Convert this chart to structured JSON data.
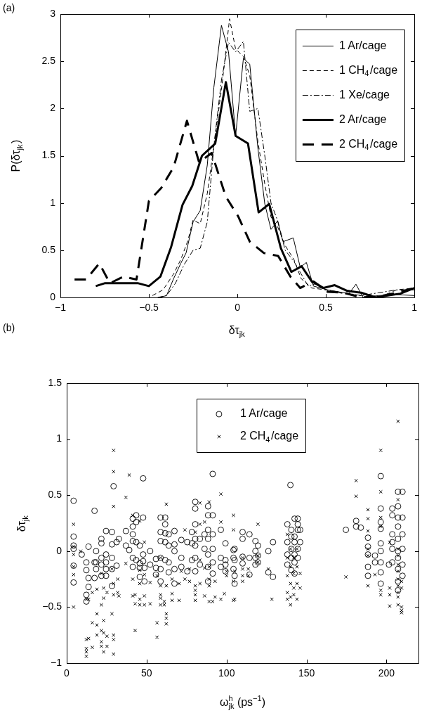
{
  "chart_data": [
    {
      "type": "line",
      "title": "(a)",
      "xlabel": "δτ$_{jk}$",
      "ylabel": "P(δτ$_{jk}$)",
      "xlim": [
        -1,
        1
      ],
      "xticks": [
        -1,
        -0.5,
        0,
        0.5,
        1
      ],
      "ylim": [
        0,
        3
      ],
      "yticks": [
        0,
        0.5,
        1,
        1.5,
        2,
        2.5,
        3
      ],
      "grid": false,
      "legend": "top right",
      "marker": "none",
      "series": [
        {
          "name": "1 Ar/cage",
          "color": "#000000",
          "line_style": "solid",
          "x": [
            -0.44,
            -0.4,
            -0.36,
            -0.32,
            -0.29,
            -0.25,
            -0.21,
            -0.17,
            -0.133,
            -0.09,
            -0.05,
            -0.01,
            0.034,
            0.07,
            0.116,
            0.155,
            0.19,
            0.227,
            0.258,
            0.316,
            0.355,
            0.39,
            0.43,
            0.51,
            0.63,
            0.67,
            0.71,
            0.8,
            0.9,
            1.0
          ],
          "values": [
            0,
            0.02,
            0.2,
            0.36,
            0.47,
            0.8,
            0.92,
            1.4,
            2.22,
            2.88,
            2.6,
            1.71,
            2.53,
            2.47,
            1.58,
            0.99,
            0.72,
            0.81,
            0.59,
            0.63,
            0.32,
            0.37,
            0.12,
            0.08,
            0.04,
            0.14,
            0,
            0.02,
            0.03,
            0.02
          ]
        },
        {
          "name": "1 CH$_{4}$/cage",
          "color": "#000000",
          "line_style": "dashed",
          "x": [
            -0.48,
            -0.42,
            -0.36,
            -0.32,
            -0.28,
            -0.25,
            -0.21,
            -0.17,
            -0.133,
            -0.09,
            -0.044,
            -0.01,
            0.034,
            0.07,
            0.116,
            0.155,
            0.19,
            0.227,
            0.27,
            0.32,
            0.36,
            0.42,
            0.5,
            0.6,
            0.7,
            0.8,
            0.9,
            1.0
          ],
          "values": [
            0.02,
            0.08,
            0.25,
            0.4,
            0.6,
            0.82,
            0.78,
            1.1,
            1.6,
            2.2,
            2.95,
            2.63,
            2.55,
            2.35,
            1.65,
            1.2,
            0.85,
            0.75,
            0.55,
            0.4,
            0.2,
            0.1,
            0.08,
            0.04,
            0.02,
            0,
            0.08,
            0.1
          ]
        },
        {
          "name": "1 Xe/cage",
          "color": "#000000",
          "line_style": "dashdot",
          "x": [
            -0.45,
            -0.4,
            -0.35,
            -0.3,
            -0.25,
            -0.21,
            -0.17,
            -0.133,
            -0.09,
            -0.05,
            -0.01,
            0.034,
            0.07,
            0.116,
            0.155,
            0.19,
            0.23,
            0.27,
            0.32,
            0.36,
            0.4,
            0.45,
            0.5,
            0.6,
            0.7,
            0.8,
            0.9,
            1.0
          ],
          "values": [
            0,
            0.02,
            0.15,
            0.35,
            0.5,
            0.52,
            0.8,
            1.6,
            2.3,
            2.7,
            2.6,
            2.71,
            1.97,
            2.0,
            1.5,
            1.0,
            0.8,
            0.5,
            0.38,
            0.25,
            0.12,
            0.15,
            0.08,
            0.05,
            0.02,
            0.05,
            0.08,
            0.08
          ]
        },
        {
          "name": "2 Ar/cage",
          "color": "#000000",
          "line_style": "solid",
          "x": [
            -0.8,
            -0.75,
            -0.56,
            -0.5,
            -0.435,
            -0.375,
            -0.31,
            -0.255,
            -0.2,
            -0.125,
            -0.065,
            -0.01,
            0.06,
            0.12,
            0.18,
            0.246,
            0.305,
            0.363,
            0.42,
            0.487,
            0.55,
            0.62,
            0.7,
            0.78,
            0.85,
            0.92,
            1.0
          ],
          "values": [
            0.12,
            0.15,
            0.15,
            0.12,
            0.22,
            0.53,
            0.98,
            1.18,
            1.5,
            1.63,
            2.28,
            1.71,
            1.63,
            0.9,
            0.99,
            0.52,
            0.27,
            0.33,
            0.17,
            0.1,
            0.13,
            0.07,
            0.05,
            0,
            0.02,
            0.04,
            0.1
          ]
        },
        {
          "name": "2 CH$_{4}$/cage",
          "color": "#000000",
          "line_style": "dashed",
          "x": [
            -0.92,
            -0.855,
            -0.78,
            -0.72,
            -0.645,
            -0.57,
            -0.5,
            -0.43,
            -0.36,
            -0.285,
            -0.216,
            -0.145,
            -0.066,
            0.004,
            0.07,
            0.15,
            0.23,
            0.3,
            0.355,
            0.43,
            0.51,
            0.6,
            0.7,
            0.8,
            0.9,
            1.0
          ],
          "values": [
            0.19,
            0.19,
            0.36,
            0.15,
            0.22,
            0.19,
            1.02,
            1.16,
            1.38,
            1.87,
            1.43,
            1.53,
            1.07,
            0.86,
            0.59,
            0.47,
            0.44,
            0.22,
            0.1,
            0.17,
            0.06,
            0.05,
            0,
            0.01,
            0.05,
            0.1
          ]
        }
      ]
    },
    {
      "type": "scatter",
      "title": "(b)",
      "xlabel": "ω$^{h}$$_{jk}$ (ps$^{−1}$)",
      "ylabel": "δτ$_{jk}$",
      "xlim": [
        0,
        220
      ],
      "xticks": [
        0,
        50,
        100,
        150,
        200
      ],
      "ylim": [
        -1,
        1.5
      ],
      "yticks": [
        -1,
        -0.5,
        0,
        0.5,
        1,
        1.5
      ],
      "grid": false,
      "legend": "top",
      "series": [
        {
          "name": "1 Ar/cage",
          "color": "#000000",
          "marker": "circle",
          "x": [
            4.3,
            4.3,
            4.3,
            4.3,
            4.3,
            4.3,
            9.4,
            12.3,
            12.3,
            12.3,
            12.3,
            13.7,
            13.7,
            13.7,
            17.4,
            17.4,
            17.4,
            18.4,
            18.4,
            18.4,
            21.7,
            21.7,
            21.7,
            21.7,
            21.7,
            24.6,
            24.6,
            24.6,
            24.6,
            24.6,
            28.3,
            28.3,
            28.3,
            28.3,
            28.3,
            29.3,
            31.2,
            31.2,
            32.6,
            37,
            37,
            39.1,
            41.3,
            41.3,
            41.3,
            41.3,
            41.3,
            41.3,
            43.5,
            43.5,
            43.5,
            43.5,
            45.7,
            45.7,
            45.7,
            45.7,
            47.8,
            47.8,
            47.8,
            47.8,
            48.6,
            48.6,
            52.2,
            52.2,
            55.8,
            55.8,
            55.8,
            58.7,
            58.7,
            58.7,
            58.7,
            58.7,
            58.7,
            61.6,
            61.6,
            61.6,
            61.6,
            61.6,
            63.8,
            63.8,
            63.8,
            63.8,
            67.4,
            67.4,
            67.4,
            67.4,
            67.4,
            71.7,
            71.7,
            71.7,
            75.4,
            75.4,
            78.3,
            78.3,
            78.3,
            80.4,
            80.4,
            80.4,
            80.4,
            80.4,
            80.4,
            80.4,
            83.3,
            83.3,
            86.2,
            86.2,
            88.4,
            88.4,
            88.4,
            88.4,
            88.4,
            88.4,
            88.4,
            91.3,
            91.3,
            91.3,
            91.3,
            91.3,
            91.3,
            96.4,
            96.4,
            96.4,
            99.3,
            99.3,
            99.3,
            99.3,
            104.3,
            104.3,
            104.3,
            105,
            105,
            105,
            105,
            110,
            110,
            110,
            110,
            114.3,
            114.3,
            114.3,
            118,
            118,
            118,
            118,
            119.6,
            119.6,
            119.6,
            126.1,
            126.1,
            129,
            129,
            139.9,
            138,
            138,
            138,
            138,
            140.5,
            140.5,
            140.5,
            140.5,
            140.5,
            142.5,
            142.5,
            142.5,
            142.5,
            142.5,
            142.5,
            144.5,
            144.5,
            144.5,
            144.5,
            144.5,
            146,
            146,
            174.6,
            181,
            181,
            183.9,
            188.4,
            188.4,
            188.4,
            188.4,
            188.4,
            192.8,
            192.8,
            196.4,
            196.4,
            196.4,
            196.4,
            196.4,
            196.4,
            196.4,
            196.4,
            196.4,
            201.5,
            203.6,
            203.6,
            203.6,
            203.6,
            203.6,
            203.6,
            207.2,
            207.2,
            207.2,
            207.2,
            207.2,
            207.2,
            207.2,
            207.2,
            207.2,
            207.2,
            210,
            210,
            210,
            210,
            210,
            210
          ],
          "values": [
            0.45,
            0.13,
            0.05,
            0.02,
            -0.13,
            -0.28,
            -0.03,
            -0.1,
            -0.17,
            -0.39,
            -0.45,
            0.04,
            -0.24,
            -0.32,
            0.36,
            -0.1,
            -0.24,
            0,
            -0.1,
            -0.16,
            0.11,
            0.07,
            -0.06,
            -0.12,
            -0.22,
            0.18,
            -0.03,
            -0.1,
            -0.16,
            -0.22,
            0.17,
            0.06,
            -0.06,
            -0.16,
            -0.31,
            0.58,
            0.08,
            -0.13,
            0.11,
            0.18,
            0.05,
            0.01,
            0.29,
            0.22,
            0.15,
            0.09,
            -0.06,
            -0.14,
            0.32,
            0.26,
            0.08,
            -0.08,
            0.05,
            -0.11,
            -0.15,
            -0.23,
            0.3,
            0.65,
            -0.03,
            -0.09,
            -0.15,
            -0.27,
            0,
            -0.12,
            -0.07,
            -0.15,
            -0.21,
            0.3,
            0.17,
            0.09,
            -0.06,
            -0.16,
            -0.27,
            0.3,
            0.24,
            0.16,
            0.08,
            -0.08,
            0.15,
            0.05,
            -0.1,
            -0.19,
            0.18,
            0.06,
            0,
            -0.16,
            -0.29,
            0.1,
            -0.06,
            -0.14,
            0.08,
            -0.18,
            0.17,
            0.07,
            -0.08,
            0.44,
            0.38,
            0.24,
            0.11,
            0.05,
            -0.06,
            -0.18,
            0.11,
            -0.12,
            0.15,
            0.02,
            0.4,
            0.32,
            0.19,
            0.11,
            -0.03,
            -0.14,
            -0.27,
            0.69,
            0.32,
            0.15,
            0.02,
            -0.1,
            -0.2,
            0.19,
            -0.06,
            -0.14,
            0.07,
            -0.08,
            -0.12,
            -0.18,
            0.01,
            -0.06,
            -0.16,
            0.02,
            -0.08,
            -0.22,
            -0.29,
            0.17,
            0.11,
            -0.05,
            -0.11,
            0.15,
            -0.06,
            -0.21,
            0.09,
            0,
            -0.06,
            -0.12,
            0.05,
            -0.04,
            -0.1,
            0,
            -0.19,
            0.08,
            -0.23,
            0.59,
            0.24,
            0.08,
            -0.03,
            -0.12,
            0.19,
            0.13,
            0.02,
            -0.06,
            -0.17,
            0.29,
            0.13,
            0.08,
            -0.03,
            -0.1,
            -0.2,
            0.29,
            0.24,
            0.19,
            0.02,
            -0.06,
            0.19,
            0.08,
            0.19,
            0.27,
            0.22,
            0.21,
            0.12,
            0.04,
            -0.03,
            -0.14,
            -0.22,
            -0.04,
            -0.1,
            0.67,
            0.38,
            0.26,
            0.2,
            0.07,
            0,
            -0.1,
            -0.19,
            -0.29,
            -0.12,
            0.38,
            0.32,
            0.15,
            0.08,
            0.02,
            -0.1,
            0.53,
            0.4,
            0.3,
            0.22,
            0.11,
            0,
            -0.06,
            -0.16,
            -0.27,
            -0.35,
            0.53,
            0.3,
            0.15,
            0.02,
            -0.12,
            -0.22
          ]
        },
        {
          "name": "2 CH$_{4}$/cage",
          "color": "#000000",
          "marker": "cross",
          "x": [
            4.3,
            4.3,
            4.3,
            4.3,
            4.3,
            4.3,
            8.7,
            12.3,
            12.3,
            12.3,
            12.3,
            12.3,
            13.7,
            13.7,
            16,
            16,
            16,
            18.9,
            18.9,
            18.9,
            18.9,
            21.7,
            21.7,
            21.7,
            21.7,
            21.7,
            23.1,
            23.1,
            23.1,
            23.1,
            23.1,
            25.2,
            25.2,
            25.2,
            28.3,
            28.3,
            29.3,
            29.3,
            29.3,
            29.3,
            29.3,
            29.3,
            29.3,
            29.3,
            31.9,
            31.9,
            32.6,
            37,
            37,
            39.1,
            41.3,
            41.3,
            41.3,
            42.8,
            42.8,
            42.8,
            45.7,
            45.7,
            45.7,
            45.7,
            45.7,
            48.6,
            48.6,
            48.6,
            48.6,
            52.2,
            52.2,
            56.5,
            56.5,
            56.5,
            58.7,
            58.7,
            58.7,
            58.7,
            58.7,
            61,
            61,
            62.3,
            62.3,
            62.3,
            62.3,
            62.3,
            65.9,
            65.9,
            65.9,
            70.3,
            70.3,
            71.7,
            73.9,
            73.9,
            76.8,
            76.8,
            80.4,
            80.4,
            80.4,
            80.4,
            80.4,
            83.3,
            83.3,
            83.3,
            83.3,
            86.2,
            86.2,
            86.2,
            89.1,
            89.1,
            89.1,
            89.1,
            89.1,
            91.3,
            92.8,
            92.8,
            96.4,
            96.4,
            96.4,
            98.6,
            100,
            100,
            104.3,
            104.3,
            104.3,
            104.3,
            105,
            105,
            110,
            110,
            110,
            110,
            113.6,
            113.6,
            119.6,
            119.6,
            119.6,
            126.1,
            128.3,
            138,
            138,
            138,
            138,
            138,
            140,
            140,
            140,
            140,
            140,
            142,
            142,
            142,
            142,
            144,
            144,
            144,
            144,
            146,
            146,
            174.6,
            181,
            181,
            188.4,
            188.4,
            188.4,
            188.4,
            188.4,
            188.4,
            192.8,
            196.4,
            196.4,
            196.4,
            196.4,
            196.4,
            196.4,
            202,
            202,
            202,
            202,
            207.2,
            207.2,
            207.2,
            207.2,
            207.2,
            207.2,
            207.2,
            207.2,
            207.2,
            207.2,
            207.2,
            209.4,
            209.4,
            209.4,
            209.4,
            209.4
          ],
          "values": [
            0.24,
            0.04,
            -0.03,
            -0.14,
            -0.21,
            -0.5,
            0,
            -0.43,
            -0.79,
            -0.87,
            -0.9,
            -0.94,
            -0.43,
            -0.78,
            -0.64,
            -0.86,
            -0.37,
            -0.56,
            -0.75,
            -0.66,
            -0.34,
            -0.48,
            -0.71,
            -0.81,
            -0.85,
            -0.2,
            -0.62,
            -0.73,
            -0.9,
            -0.42,
            -0.33,
            -0.37,
            -0.85,
            -0.76,
            -0.56,
            -0.16,
            0.9,
            0.71,
            0.4,
            -0.39,
            -0.75,
            -0.79,
            -0.92,
            -0.29,
            -0.25,
            -0.37,
            -0.4,
            0.48,
            -0.11,
            0.68,
            -0.25,
            -0.4,
            0.32,
            -0.39,
            -0.47,
            -0.71,
            -0.29,
            -0.43,
            -0.48,
            -0.17,
            0.27,
            -0.4,
            -0.48,
            -0.21,
            0.08,
            -0.28,
            -0.47,
            -0.64,
            -0.77,
            -0.22,
            -0.31,
            -0.39,
            -0.42,
            -0.48,
            -0.06,
            -0.48,
            -0.45,
            0.42,
            -0.56,
            -0.6,
            -0.65,
            -0.31,
            -0.38,
            -0.44,
            -0.25,
            -0.44,
            -0.29,
            -0.18,
            0.19,
            -0.25,
            -0.16,
            -0.27,
            -0.31,
            -0.35,
            -0.39,
            -0.44,
            0.17,
            0.43,
            0.24,
            -0.08,
            -0.29,
            -0.4,
            -0.15,
            0.26,
            -0.25,
            -0.31,
            -0.45,
            0.44,
            -0.14,
            -0.45,
            -0.27,
            -0.41,
            0.51,
            -0.43,
            0.26,
            -0.38,
            -0.18,
            -0.22,
            0.32,
            0.19,
            -0.27,
            -0.44,
            -0.18,
            -0.43,
            -0.06,
            -0.16,
            -0.22,
            -0.27,
            -0.16,
            -0.22,
            0.24,
            -0.04,
            -0.1,
            -0.16,
            -0.43,
            0.15,
            -0.06,
            -0.22,
            -0.37,
            -0.43,
            0.02,
            -0.14,
            -0.29,
            -0.41,
            -0.48,
            -0.06,
            -0.2,
            -0.33,
            -0.39,
            0.02,
            -0.14,
            -0.29,
            -0.43,
            -0.2,
            -0.33,
            -0.23,
            0.63,
            0.49,
            0.37,
            0.29,
            0.18,
            0.02,
            -0.04,
            -0.31,
            -0.21,
            0.9,
            0.53,
            0.3,
            0.22,
            -0.35,
            -0.39,
            0.08,
            -0.33,
            -0.39,
            -0.49,
            1.16,
            0.46,
            0.02,
            -0.04,
            -0.12,
            -0.18,
            -0.25,
            -0.31,
            -0.37,
            -0.41,
            -0.48,
            -0.5,
            -0.53,
            -0.55,
            -0.27,
            -0.33
          ]
        }
      ]
    }
  ]
}
